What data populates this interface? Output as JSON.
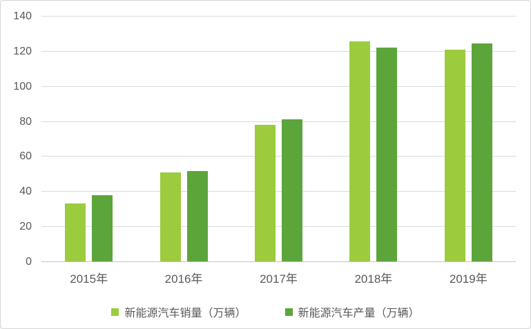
{
  "chart_data": {
    "type": "bar",
    "categories": [
      "2015年",
      "2016年",
      "2017年",
      "2018年",
      "2019年"
    ],
    "series": [
      {
        "key": "sales",
        "name": "新能源汽车销量（万辆）",
        "color": "#9CCB3E",
        "values": [
          33.1,
          50.7,
          77.7,
          125.6,
          120.6
        ]
      },
      {
        "key": "production",
        "name": "新能源汽车产量（万辆）",
        "color": "#5CA53A",
        "values": [
          37.9,
          51.7,
          81.0,
          122.0,
          124.2
        ]
      }
    ],
    "ylim": [
      0,
      140
    ],
    "yticks": [
      0,
      20,
      40,
      60,
      80,
      100,
      120,
      140
    ],
    "grid": true,
    "legend_position": "bottom"
  },
  "colors": {
    "axis_text": "#595959",
    "gridline": "#DADADA",
    "axis_line": "#C3C3C3",
    "card_border": "#D5D5D5",
    "background": "#FFFFFF"
  }
}
